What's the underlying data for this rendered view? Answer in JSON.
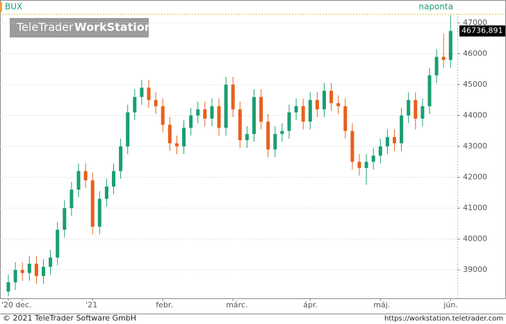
{
  "chart_data": {
    "type": "candlestick",
    "title": "BUX",
    "subtitle": "naponta",
    "watermark": {
      "brand": "TeleTrader",
      "product": "WorkStation"
    },
    "up_color": "#1a9e72",
    "down_color": "#e8601c",
    "grid": true,
    "ylim": [
      38080,
      47290
    ],
    "yticks": [
      39000,
      40000,
      41000,
      42000,
      43000,
      44000,
      45000,
      46000,
      47000
    ],
    "last_price": {
      "value": 46736.891,
      "label": "46736,891"
    },
    "categories": [
      "'20",
      null,
      "dec.",
      null,
      null,
      null,
      null,
      null,
      null,
      null,
      null,
      null,
      "'21",
      null,
      null,
      null,
      null,
      null,
      null,
      null,
      null,
      null,
      "febr.",
      null,
      null,
      null,
      null,
      null,
      null,
      null,
      null,
      null,
      "márc.",
      null,
      null,
      null,
      null,
      null,
      null,
      null,
      null,
      null,
      null,
      "ápr.",
      null,
      null,
      null,
      null,
      null,
      null,
      null,
      null,
      null,
      "máj.",
      null,
      null,
      null,
      null,
      null,
      null,
      null,
      null,
      null,
      "jún."
    ],
    "open": [
      38300,
      38600,
      39000,
      38900,
      39200,
      38800,
      39100,
      39400,
      40300,
      41000,
      41600,
      42200,
      41900,
      40400,
      41300,
      41700,
      42200,
      43000,
      44100,
      44600,
      44900,
      44500,
      44300,
      43700,
      43100,
      43000,
      43600,
      44000,
      44200,
      43900,
      44300,
      43600,
      45000,
      44200,
      43200,
      43400,
      44600,
      43800,
      42900,
      43400,
      43500,
      44100,
      44300,
      43800,
      44500,
      44200,
      44800,
      44400,
      44300,
      43500,
      42500,
      42300,
      42500,
      42700,
      43000,
      43300,
      43100,
      44000,
      44500,
      43900,
      44300,
      45300,
      45900,
      45800
    ],
    "high": [
      38850,
      39250,
      39250,
      39450,
      39450,
      39350,
      39650,
      40550,
      41250,
      41850,
      42450,
      42450,
      42150,
      41550,
      41950,
      42450,
      43250,
      44350,
      44850,
      45150,
      45150,
      44750,
      44550,
      43950,
      43350,
      43850,
      44250,
      44450,
      44450,
      44550,
      44550,
      45250,
      45250,
      44450,
      43650,
      44850,
      44850,
      44050,
      43650,
      43750,
      44350,
      44550,
      44550,
      44750,
      44750,
      45050,
      45050,
      44650,
      44550,
      43750,
      42750,
      42750,
      42950,
      43250,
      43550,
      43550,
      44250,
      44750,
      44750,
      44550,
      45550,
      46150,
      46650,
      47250
    ],
    "low": [
      38150,
      38350,
      38650,
      38650,
      38550,
      38550,
      38850,
      39150,
      40050,
      40750,
      41350,
      41650,
      40150,
      40150,
      41050,
      41450,
      41950,
      42750,
      43850,
      44350,
      44250,
      44050,
      43450,
      42850,
      42750,
      42750,
      43350,
      43750,
      43650,
      43650,
      43350,
      43350,
      43950,
      42950,
      42950,
      43150,
      43550,
      42650,
      42650,
      43150,
      43250,
      43850,
      43550,
      43550,
      43950,
      43950,
      44150,
      44050,
      43250,
      42250,
      42050,
      41750,
      42250,
      42450,
      42750,
      42850,
      42850,
      43750,
      43550,
      43650,
      44050,
      45050,
      45550,
      45550
    ],
    "close": [
      38600,
      39000,
      38900,
      39200,
      38800,
      39100,
      39400,
      40300,
      41000,
      41600,
      42200,
      41900,
      40400,
      41300,
      41700,
      42200,
      43000,
      44100,
      44600,
      44900,
      44500,
      44300,
      43700,
      43100,
      43000,
      43600,
      44000,
      44200,
      43900,
      44300,
      43600,
      45000,
      44200,
      43200,
      43400,
      44600,
      43800,
      42900,
      43400,
      43500,
      44100,
      44300,
      43800,
      44500,
      44200,
      44800,
      44400,
      44300,
      43500,
      42500,
      42300,
      42500,
      42700,
      43000,
      43300,
      43100,
      44000,
      44500,
      43900,
      44300,
      45300,
      45900,
      45800,
      46736.891
    ]
  },
  "footer": {
    "left": "© 2021 TeleTrader Software GmbH",
    "right": "https://workstation.teletrader.com"
  }
}
